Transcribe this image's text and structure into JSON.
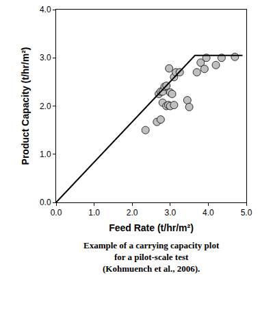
{
  "chart_data": {
    "type": "scatter",
    "x_label": "Feed Rate (t/hr/m²)",
    "y_label": "Product Capacity (t/hr/m²)",
    "caption": [
      "Example of a carrying capacity plot",
      "for a pilot-scale test",
      "(Kohmuench et al., 2006)."
    ],
    "xlim": [
      0,
      5
    ],
    "ylim": [
      0,
      4
    ],
    "xticks": [
      {
        "value": 0,
        "label": "0.0"
      },
      {
        "value": 1,
        "label": "1.0"
      },
      {
        "value": 2,
        "label": "2.0"
      },
      {
        "value": 3,
        "label": "3.0"
      },
      {
        "value": 4,
        "label": "4.0"
      },
      {
        "value": 5,
        "label": "5.0"
      }
    ],
    "yticks": [
      {
        "value": 0,
        "label": "0.0"
      },
      {
        "value": 1,
        "label": "1.0"
      },
      {
        "value": 2,
        "label": "2.0"
      },
      {
        "value": 3,
        "label": "3.0"
      },
      {
        "value": 4,
        "label": "4.0"
      }
    ],
    "grid": false,
    "series": [
      {
        "type": "scatter",
        "marker": "circle",
        "color": "#bfbfbf",
        "x": [
          2.35,
          2.65,
          2.75,
          2.7,
          2.75,
          2.8,
          2.85,
          2.9,
          2.8,
          2.9,
          2.95,
          3.0,
          3.0,
          3.05,
          3.1,
          2.97,
          3.1,
          3.15,
          3.25,
          3.45,
          3.5,
          3.7,
          3.8,
          3.9,
          3.95,
          4.2,
          4.35,
          4.7
        ],
        "values": [
          1.5,
          1.67,
          1.72,
          2.25,
          2.3,
          2.3,
          2.4,
          2.42,
          2.07,
          2.0,
          2.02,
          2.0,
          2.28,
          2.25,
          2.02,
          2.78,
          2.6,
          2.7,
          2.7,
          2.12,
          1.98,
          2.7,
          2.9,
          2.77,
          3.0,
          2.85,
          3.0,
          3.02
        ]
      },
      {
        "type": "line",
        "line_style": "solid",
        "color": "#000000",
        "x": [
          0,
          3.65,
          4.9
        ],
        "values": [
          0,
          3.05,
          3.05
        ]
      }
    ]
  }
}
